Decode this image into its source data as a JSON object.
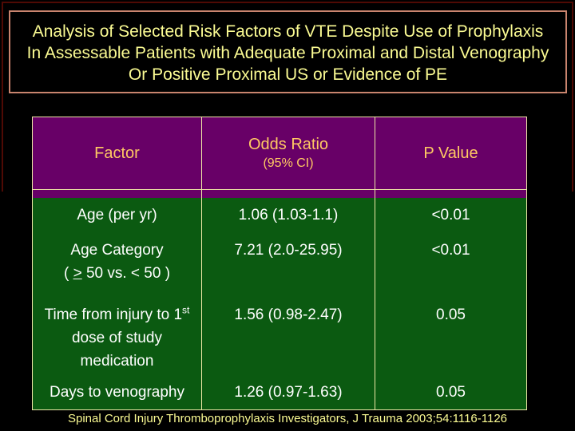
{
  "slide": {
    "title_lines": [
      "Analysis of Selected Risk Factors of VTE Despite Use of Prophylaxis",
      "In Assessable Patients with Adequate Proximal and Distal Venography",
      "Or Positive Proximal US or Evidence of PE"
    ],
    "citation": "Spinal Cord Injury Thromboprophylaxis Investigators, J Trauma 2003;54:1116-1126"
  },
  "table": {
    "header": {
      "factor": "Factor",
      "odds_ratio": "Odds Ratio",
      "odds_ci": "(95% CI)",
      "p_value": "P Value"
    },
    "rows": [
      {
        "factor": "Age (per yr)",
        "odds": "1.06 (1.03-1.1)",
        "p": "<0.01"
      },
      {
        "factor_line1": "Age Category",
        "gte_open": "( ",
        "gte_symbol": ">",
        "gte_rest": " 50 vs. < 50 )",
        "odds": "7.21 (2.0-25.95)",
        "p": "<0.01"
      },
      {
        "factor_line1": "Time from injury to 1",
        "factor_sup": "st",
        "factor_line2": "dose of study",
        "factor_line3": "medication",
        "odds": "1.56 (0.98-2.47)",
        "p": "0.05"
      },
      {
        "factor": "Days to venography",
        "odds": "1.26 (0.97-1.63)",
        "p": "0.05"
      }
    ]
  },
  "chart_data": {
    "type": "table",
    "columns": [
      "Factor",
      "Odds Ratio (95% CI)",
      "P Value"
    ],
    "rows": [
      [
        "Age (per yr)",
        "1.06 (1.03-1.1)",
        "<0.01"
      ],
      [
        "Age Category ( > 50 vs. < 50 )",
        "7.21 (2.0-25.95)",
        "<0.01"
      ],
      [
        "Time from injury to 1st dose of study medication",
        "1.56 (0.98-2.47)",
        "0.05"
      ],
      [
        "Days to venography",
        "1.26 (0.97-1.63)",
        "0.05"
      ]
    ]
  },
  "colors": {
    "background": "#000000",
    "slide_edge": "#4f0a04",
    "title_border": "#c9846e",
    "title_text": "#fbfb93",
    "header_bg": "#680067",
    "header_text": "#ffc963",
    "body_bg": "#0b5a11",
    "body_text": "#ffffff",
    "grid_line": "#efe8a6",
    "citation_text": "#fbfb93"
  }
}
